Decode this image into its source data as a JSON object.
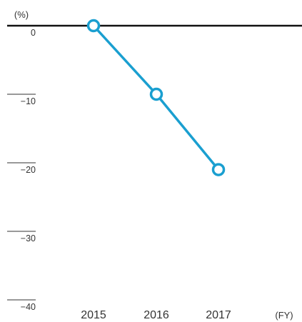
{
  "chart_data": {
    "type": "line",
    "title": "",
    "y_unit_label": "(%)",
    "x_unit_label": "(FY)",
    "categories": [
      "2015",
      "2016",
      "2017"
    ],
    "values": [
      0,
      -10,
      -21
    ],
    "ylim": [
      -40,
      0
    ],
    "y_ticks": [
      0,
      -10,
      -20,
      -30,
      -40
    ],
    "y_tick_labels": [
      "0",
      "−10",
      "−20",
      "−30",
      "−40"
    ],
    "colors": {
      "line": "#1a9fd0",
      "zero_line": "#111111",
      "tick_rule": "#333333",
      "text": "#333333"
    },
    "grid": false,
    "legend": "none"
  }
}
